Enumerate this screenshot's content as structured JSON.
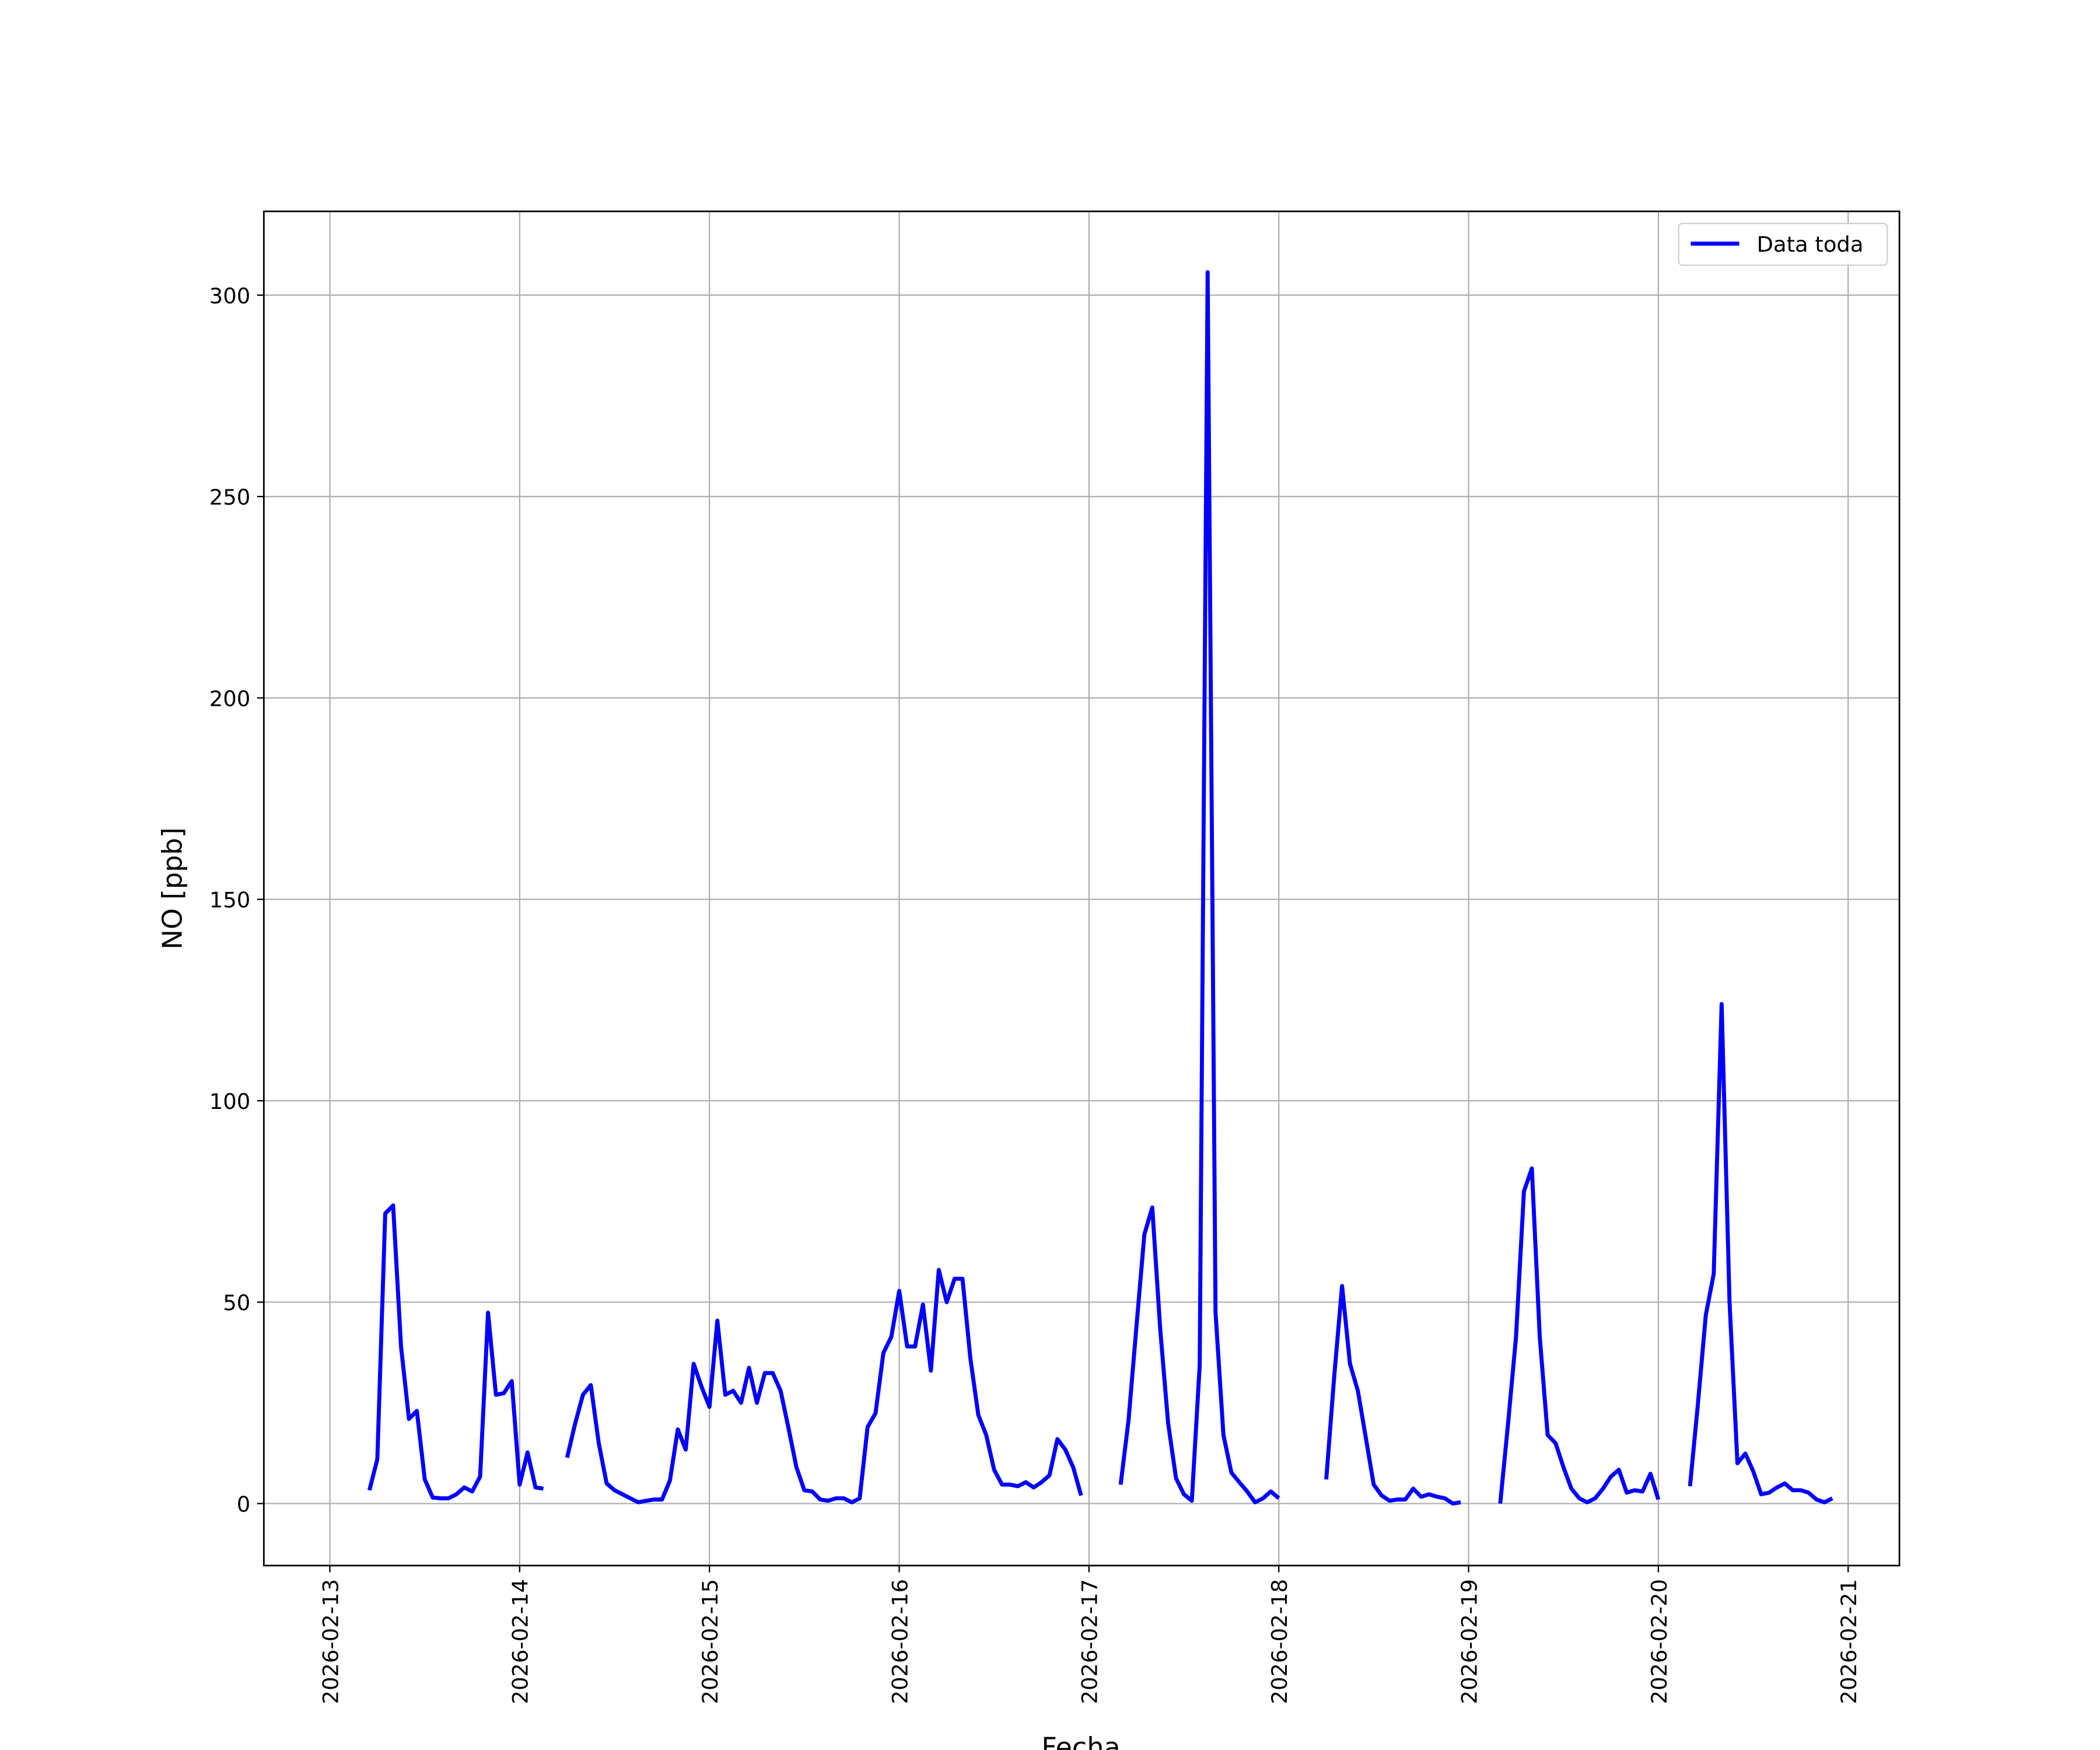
{
  "chart_data": {
    "type": "line",
    "xlabel": "Fecha",
    "ylabel": "NO [ppb]",
    "x": [
      "2026-02-13T05:00",
      "2026-02-13T06:00",
      "2026-02-13T07:00",
      "2026-02-13T08:00",
      "2026-02-13T09:00",
      "2026-02-13T10:00",
      "2026-02-13T11:00",
      "2026-02-13T12:00",
      "2026-02-13T13:00",
      "2026-02-13T14:00",
      "2026-02-13T15:00",
      "2026-02-13T16:00",
      "2026-02-13T17:00",
      "2026-02-13T18:00",
      "2026-02-13T19:00",
      "2026-02-13T20:00",
      "2026-02-13T21:00",
      "2026-02-13T22:00",
      "2026-02-13T23:00",
      "2026-02-14T00:00",
      "2026-02-14T01:00",
      "2026-02-14T02:00",
      "2026-02-14T03:00",
      "2026-02-14T04:00",
      "2026-02-14T05:00",
      "2026-02-14T06:00",
      "2026-02-14T07:00",
      "2026-02-14T08:00",
      "2026-02-14T09:00",
      "2026-02-14T10:00",
      "2026-02-14T11:00",
      "2026-02-14T12:00",
      "2026-02-14T13:00",
      "2026-02-14T14:00",
      "2026-02-14T15:00",
      "2026-02-14T16:00",
      "2026-02-14T17:00",
      "2026-02-14T18:00",
      "2026-02-14T19:00",
      "2026-02-14T20:00",
      "2026-02-14T21:00",
      "2026-02-14T22:00",
      "2026-02-14T23:00",
      "2026-02-15T00:00",
      "2026-02-15T01:00",
      "2026-02-15T02:00",
      "2026-02-15T03:00",
      "2026-02-15T04:00",
      "2026-02-15T05:00",
      "2026-02-15T06:00",
      "2026-02-15T07:00",
      "2026-02-15T08:00",
      "2026-02-15T09:00",
      "2026-02-15T10:00",
      "2026-02-15T11:00",
      "2026-02-15T12:00",
      "2026-02-15T13:00",
      "2026-02-15T14:00",
      "2026-02-15T15:00",
      "2026-02-15T16:00",
      "2026-02-15T17:00",
      "2026-02-15T18:00",
      "2026-02-15T19:00",
      "2026-02-15T20:00",
      "2026-02-15T21:00",
      "2026-02-15T22:00",
      "2026-02-15T23:00",
      "2026-02-16T00:00",
      "2026-02-16T01:00",
      "2026-02-16T02:00",
      "2026-02-16T03:00",
      "2026-02-16T04:00",
      "2026-02-16T05:00",
      "2026-02-16T06:00",
      "2026-02-16T07:00",
      "2026-02-16T08:00",
      "2026-02-16T09:00",
      "2026-02-16T10:00",
      "2026-02-16T11:00",
      "2026-02-16T12:00",
      "2026-02-16T13:00",
      "2026-02-16T14:00",
      "2026-02-16T15:00",
      "2026-02-16T16:00",
      "2026-02-16T17:00",
      "2026-02-16T18:00",
      "2026-02-16T19:00",
      "2026-02-16T20:00",
      "2026-02-16T21:00",
      "2026-02-16T22:00",
      "2026-02-16T23:00",
      "2026-02-17T00:00",
      "2026-02-17T01:00",
      "2026-02-17T02:00",
      "2026-02-17T03:00",
      "2026-02-17T04:00",
      "2026-02-17T05:00",
      "2026-02-17T06:00",
      "2026-02-17T07:00",
      "2026-02-17T08:00",
      "2026-02-17T09:00",
      "2026-02-17T10:00",
      "2026-02-17T11:00",
      "2026-02-17T12:00",
      "2026-02-17T13:00",
      "2026-02-17T14:00",
      "2026-02-17T15:00",
      "2026-02-17T16:00",
      "2026-02-17T17:00",
      "2026-02-17T18:00",
      "2026-02-17T19:00",
      "2026-02-17T20:00",
      "2026-02-17T21:00",
      "2026-02-17T22:00",
      "2026-02-17T23:00",
      "2026-02-18T00:00",
      "2026-02-18T01:00",
      "2026-02-18T02:00",
      "2026-02-18T03:00",
      "2026-02-18T04:00",
      "2026-02-18T05:00",
      "2026-02-18T06:00",
      "2026-02-18T07:00",
      "2026-02-18T08:00",
      "2026-02-18T09:00",
      "2026-02-18T10:00",
      "2026-02-18T11:00",
      "2026-02-18T12:00",
      "2026-02-18T13:00",
      "2026-02-18T14:00",
      "2026-02-18T15:00",
      "2026-02-18T16:00",
      "2026-02-18T17:00",
      "2026-02-18T18:00",
      "2026-02-18T19:00",
      "2026-02-18T20:00",
      "2026-02-18T21:00",
      "2026-02-18T22:00",
      "2026-02-18T23:00",
      "2026-02-19T00:00",
      "2026-02-19T01:00",
      "2026-02-19T02:00",
      "2026-02-19T03:00",
      "2026-02-19T04:00",
      "2026-02-19T05:00",
      "2026-02-19T06:00",
      "2026-02-19T07:00",
      "2026-02-19T08:00",
      "2026-02-19T09:00",
      "2026-02-19T10:00",
      "2026-02-19T11:00",
      "2026-02-19T12:00",
      "2026-02-19T13:00",
      "2026-02-19T14:00",
      "2026-02-19T15:00",
      "2026-02-19T16:00",
      "2026-02-19T17:00",
      "2026-02-19T18:00",
      "2026-02-19T19:00",
      "2026-02-19T20:00",
      "2026-02-19T21:00",
      "2026-02-19T22:00",
      "2026-02-19T23:00",
      "2026-02-20T00:00",
      "2026-02-20T01:00",
      "2026-02-20T02:00",
      "2026-02-20T03:00",
      "2026-02-20T04:00",
      "2026-02-20T05:00",
      "2026-02-20T06:00",
      "2026-02-20T07:00",
      "2026-02-20T08:00",
      "2026-02-20T09:00",
      "2026-02-20T10:00",
      "2026-02-20T11:00",
      "2026-02-20T12:00",
      "2026-02-20T13:00",
      "2026-02-20T14:00",
      "2026-02-20T15:00",
      "2026-02-20T16:00",
      "2026-02-20T17:00",
      "2026-02-20T18:00",
      "2026-02-20T19:00",
      "2026-02-20T20:00",
      "2026-02-20T21:00",
      "2026-02-20T22:00"
    ],
    "series": [
      {
        "name": "Data toda",
        "color": "#0000ff",
        "values": [
          3.3,
          11,
          72,
          74,
          39,
          21,
          23,
          6,
          1.5,
          1.3,
          1.3,
          2.3,
          4,
          3,
          6.7,
          47.4,
          27,
          27.4,
          30.4,
          4.7,
          12.7,
          4,
          3.7,
          null,
          null,
          11.4,
          19.7,
          27,
          29.4,
          15,
          5,
          3.3,
          2.3,
          1.3,
          0.3,
          0.7,
          1,
          1,
          5.7,
          18.4,
          13.4,
          34.7,
          29,
          24,
          45.4,
          27,
          28,
          25,
          33.7,
          25,
          32.4,
          32.4,
          28,
          18.7,
          9,
          3.3,
          3,
          1,
          0.7,
          1.3,
          1.3,
          0.3,
          1.3,
          19,
          22.4,
          37.4,
          41.4,
          52.8,
          39,
          39,
          49.4,
          33,
          58,
          50,
          55.8,
          55.8,
          36,
          22,
          17,
          8.4,
          4.7,
          4.7,
          4.3,
          5.3,
          4,
          5.3,
          7,
          16,
          13.4,
          9,
          2,
          null,
          null,
          null,
          null,
          4.7,
          20.7,
          44,
          66.8,
          73.5,
          43.4,
          20,
          6.3,
          2.3,
          0.7,
          34.4,
          305.7,
          47.4,
          17,
          7.7,
          5.3,
          3,
          0.3,
          1.3,
          3,
          1.3,
          null,
          null,
          null,
          null,
          null,
          6,
          31.4,
          54,
          34.7,
          28,
          16.4,
          4.7,
          2,
          0.7,
          1,
          1,
          3.7,
          1.7,
          2.3,
          1.7,
          1.3,
          0,
          0.3,
          null,
          null,
          null,
          null,
          0,
          20,
          41.4,
          77.5,
          83.2,
          41.4,
          17,
          15,
          9,
          3.7,
          1.3,
          0.3,
          1.3,
          3.7,
          6.7,
          8.4,
          2.7,
          3.3,
          3,
          7.4,
          1,
          null,
          null,
          null,
          4.3,
          24.7,
          46.8,
          57,
          124,
          50,
          10,
          12.4,
          8,
          2.3,
          2.7,
          4,
          5,
          3.3,
          3.3,
          2.7,
          1,
          0.3,
          1.3
        ]
      }
    ],
    "xlim": [
      "2026-02-12T15:39",
      "2026-02-21T06:29"
    ],
    "xticks": [
      "2026-02-13",
      "2026-02-14",
      "2026-02-15",
      "2026-02-16",
      "2026-02-17",
      "2026-02-18",
      "2026-02-19",
      "2026-02-20",
      "2026-02-21"
    ],
    "ylim": [
      -15.4,
      320.8
    ],
    "yticks": [
      0,
      50,
      100,
      150,
      200,
      250,
      300
    ],
    "grid": true,
    "legend": "upper right"
  }
}
